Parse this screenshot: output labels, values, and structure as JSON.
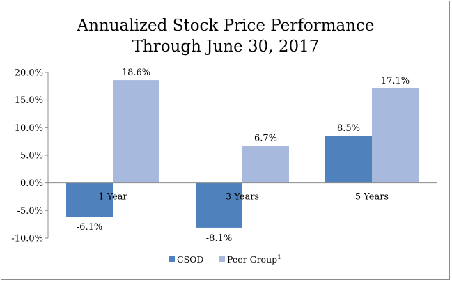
{
  "chart_data": {
    "type": "bar",
    "title": [
      "Annualized Stock Price Performance",
      "Through June 30, 2017"
    ],
    "xlabel": "",
    "ylabel": "",
    "categories": [
      "1 Year",
      "3 Years",
      "5 Years"
    ],
    "series": [
      {
        "name": "CSOD",
        "color": "#4f81bd",
        "values": [
          -6.1,
          -8.1,
          8.5
        ],
        "labels": [
          "-6.1%",
          "-8.1%",
          "8.5%"
        ]
      },
      {
        "name": "Peer Group",
        "name_superscript": "1",
        "color": "#a7b9dd",
        "values": [
          18.6,
          6.7,
          17.1
        ],
        "labels": [
          "18.6%",
          "6.7%",
          "17.1%"
        ]
      }
    ],
    "ylim": [
      -10,
      20
    ],
    "yticks": [
      20,
      15,
      10,
      5,
      0,
      -5,
      -10
    ],
    "ytick_labels": [
      "20.0%",
      "15.0%",
      "10.0%",
      "5.0%",
      "0.0%",
      "-5.0%",
      "-10.0%"
    ],
    "grid": false,
    "legend": "bottom"
  }
}
